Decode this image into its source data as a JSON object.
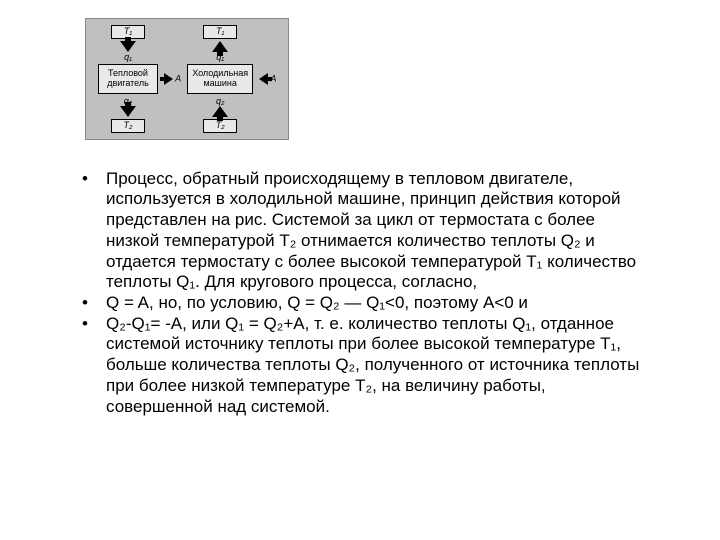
{
  "diagram": {
    "bg_color": "#bfc0c0",
    "box_bg": "#e9eae8",
    "left": {
      "top_box": "T₁",
      "upper_arrow_label": "q₁",
      "mid_box": "Тепловой\nдвигатель",
      "side_arrow": "right",
      "side_label": "A",
      "lower_arrow_label": "q₂",
      "bottom_box": "T₂"
    },
    "right": {
      "top_box": "T₁",
      "upper_arrow_label": "q₁",
      "mid_box": "Холодильная\nмашина",
      "side_arrow": "left",
      "side_label": "A",
      "lower_arrow_label": "q₂",
      "bottom_box": "T₂"
    }
  },
  "bullets": {
    "b1": "Процесс, обратный происходящему в тепловом двигателе, используется в холодильной машине, принцип действия которой представлен на рис. Системой за цикл от термостата с более низкой температурой Т₂ отнимается количество теплоты Q₂ и отдается термостату с более высокой температурой Т₁ количество теплоты Q₁. Для кругового процесса, согласно,",
    "b2": "Q = A, но, по условию, Q = Q₂ — Q₁<0, поэтому A<0 и",
    "b3": "Q₂-Q₁= -A, или Q₁ = Q₂+A, т. е. количество теплоты Q₁, отданное системой источнику теплоты при более высокой температуре Т₁, больше количества теплоты Q₂, полученного от источника теплоты при более низкой температуре Т₂, на величину работы, совершенной над системой."
  }
}
